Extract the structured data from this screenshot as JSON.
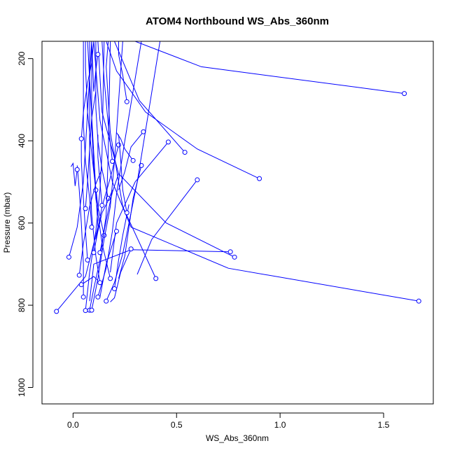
{
  "chart_data": {
    "type": "line",
    "title": "ATOM4 Northbound WS_Abs_360nm",
    "xlabel": "WS_Abs_360nm",
    "ylabel": "Pressure (mbar)",
    "xlim": [
      -0.15,
      1.74
    ],
    "ylim": [
      1040,
      158
    ],
    "x_ticks": [
      0.0,
      0.5,
      1.0,
      1.5
    ],
    "x_tick_labels": [
      "0.0",
      "0.5",
      "1.0",
      "1.5"
    ],
    "y_ticks": [
      200,
      400,
      600,
      800,
      1000
    ],
    "y_tick_labels": [
      "200",
      "400",
      "600",
      "800",
      "1000"
    ],
    "grid": false,
    "series_color": "#0000ff",
    "series": [
      {
        "values": [
          [
            -0.08,
            815
          ],
          [
            0.06,
            730
          ],
          [
            0.12,
            610
          ],
          [
            0.1,
            430
          ],
          [
            0.08,
            250
          ],
          [
            0.07,
            158
          ]
        ]
      },
      {
        "values": [
          [
            1.67,
            790
          ],
          [
            0.75,
            710
          ],
          [
            0.28,
            610
          ],
          [
            0.19,
            500
          ],
          [
            0.13,
            350
          ],
          [
            0.1,
            158
          ]
        ]
      },
      {
        "values": [
          [
            1.6,
            285
          ],
          [
            0.62,
            220
          ],
          [
            0.3,
            158
          ]
        ]
      },
      {
        "values": [
          [
            0.78,
            683
          ],
          [
            0.45,
            600
          ],
          [
            0.22,
            480
          ],
          [
            0.14,
            330
          ],
          [
            0.12,
            158
          ]
        ]
      },
      {
        "values": [
          [
            0.9,
            492
          ],
          [
            0.6,
            420
          ],
          [
            0.35,
            330
          ],
          [
            0.21,
            230
          ],
          [
            0.16,
            158
          ]
        ]
      },
      {
        "values": [
          [
            0.76,
            670
          ],
          [
            0.28,
            665
          ],
          [
            0.1,
            700
          ],
          [
            0.08,
            790
          ]
        ]
      },
      {
        "values": [
          [
            0.6,
            495
          ],
          [
            0.38,
            640
          ],
          [
            0.31,
            725
          ]
        ]
      },
      {
        "values": [
          [
            0.54,
            428
          ],
          [
            0.32,
            302
          ],
          [
            0.2,
            158
          ]
        ]
      },
      {
        "values": [
          [
            0.46,
            403
          ],
          [
            0.3,
            500
          ],
          [
            0.21,
            600
          ],
          [
            0.18,
            720
          ]
        ]
      },
      {
        "values": [
          [
            0.4,
            735
          ],
          [
            0.24,
            560
          ],
          [
            0.18,
            380
          ],
          [
            0.16,
            220
          ],
          [
            0.17,
            158
          ]
        ]
      },
      {
        "values": [
          [
            0.34,
            378
          ],
          [
            0.28,
            415
          ],
          [
            0.25,
            475
          ],
          [
            0.22,
            520
          ]
        ]
      },
      {
        "values": [
          [
            0.33,
            460
          ],
          [
            0.29,
            540
          ],
          [
            0.25,
            680
          ],
          [
            0.22,
            735
          ]
        ]
      },
      {
        "values": [
          [
            0.26,
            305
          ],
          [
            0.24,
            240
          ],
          [
            0.22,
            190
          ],
          [
            0.22,
            158
          ]
        ]
      },
      {
        "values": [
          [
            0.28,
            663
          ],
          [
            0.23,
            720
          ],
          [
            0.2,
            782
          ],
          [
            0.18,
            792
          ]
        ]
      },
      {
        "values": [
          [
            0.22,
            410
          ],
          [
            0.18,
            490
          ],
          [
            0.14,
            560
          ],
          [
            0.11,
            640
          ]
        ]
      },
      {
        "values": [
          [
            0.21,
            620
          ],
          [
            0.16,
            700
          ],
          [
            0.13,
            780
          ],
          [
            0.12,
            783
          ]
        ]
      },
      {
        "values": [
          [
            0.19,
            450
          ],
          [
            0.17,
            360
          ],
          [
            0.15,
            250
          ],
          [
            0.14,
            158
          ]
        ]
      },
      {
        "values": [
          [
            0.17,
            540
          ],
          [
            0.14,
            470
          ],
          [
            0.12,
            400
          ],
          [
            0.11,
            320
          ],
          [
            0.11,
            158
          ]
        ]
      },
      {
        "values": [
          [
            0.15,
            630
          ],
          [
            0.12,
            560
          ],
          [
            0.1,
            470
          ],
          [
            0.09,
            360
          ],
          [
            0.09,
            158
          ]
        ]
      },
      {
        "values": [
          [
            0.13,
            745
          ],
          [
            0.11,
            680
          ],
          [
            0.09,
            580
          ],
          [
            0.08,
            450
          ],
          [
            0.08,
            158
          ]
        ]
      },
      {
        "values": [
          [
            0.11,
            520
          ],
          [
            0.09,
            430
          ],
          [
            0.07,
            330
          ],
          [
            0.06,
            220
          ],
          [
            0.06,
            158
          ]
        ]
      },
      {
        "values": [
          [
            0.09,
            610
          ],
          [
            0.08,
            540
          ],
          [
            0.06,
            450
          ],
          [
            0.05,
            360
          ],
          [
            0.05,
            158
          ]
        ]
      },
      {
        "values": [
          [
            0.07,
            690
          ],
          [
            0.06,
            620
          ],
          [
            0.05,
            540
          ],
          [
            0.04,
            450
          ],
          [
            0.04,
            400
          ]
        ]
      },
      {
        "values": [
          [
            0.05,
            780
          ],
          [
            0.05,
            700
          ],
          [
            0.04,
            600
          ],
          [
            0.03,
            520
          ],
          [
            0.02,
            460
          ]
        ]
      },
      {
        "values": [
          [
            0.02,
            470
          ],
          [
            0.01,
            510
          ],
          [
            0.0,
            455
          ],
          [
            -0.01,
            463
          ]
        ]
      },
      {
        "values": [
          [
            -0.02,
            683
          ],
          [
            0.02,
            610
          ],
          [
            0.05,
            500
          ],
          [
            0.07,
            330
          ],
          [
            0.09,
            158
          ]
        ]
      },
      {
        "values": [
          [
            0.06,
            813
          ],
          [
            0.08,
            720
          ],
          [
            0.11,
            620
          ],
          [
            0.13,
            520
          ],
          [
            0.14,
            430
          ],
          [
            0.15,
            158
          ]
        ]
      },
      {
        "values": [
          [
            0.08,
            812
          ],
          [
            0.1,
            760
          ],
          [
            0.13,
            690
          ],
          [
            0.16,
            580
          ],
          [
            0.17,
            430
          ],
          [
            0.18,
            158
          ]
        ]
      },
      {
        "values": [
          [
            0.09,
            812
          ],
          [
            0.12,
            735
          ],
          [
            0.15,
            640
          ],
          [
            0.18,
            560
          ],
          [
            0.2,
            450
          ],
          [
            0.24,
            158
          ]
        ]
      },
      {
        "values": [
          [
            0.12,
            780
          ],
          [
            0.16,
            710
          ],
          [
            0.19,
            620
          ],
          [
            0.21,
            530
          ],
          [
            0.25,
            400
          ],
          [
            0.33,
            158
          ]
        ]
      },
      {
        "values": [
          [
            0.16,
            790
          ],
          [
            0.2,
            745
          ],
          [
            0.24,
            675
          ],
          [
            0.27,
            600
          ],
          [
            0.31,
            500
          ],
          [
            0.42,
            158
          ]
        ]
      },
      {
        "values": [
          [
            0.04,
            750
          ],
          [
            0.07,
            740
          ],
          [
            0.1,
            730
          ],
          [
            0.12,
            740
          ]
        ]
      },
      {
        "values": [
          [
            0.03,
            727
          ],
          [
            0.05,
            650
          ],
          [
            0.08,
            560
          ],
          [
            0.11,
            505
          ],
          [
            0.14,
            468
          ]
        ]
      },
      {
        "values": [
          [
            0.1,
            672
          ],
          [
            0.12,
            620
          ],
          [
            0.14,
            575
          ],
          [
            0.17,
            545
          ],
          [
            0.19,
            520
          ]
        ]
      },
      {
        "values": [
          [
            0.13,
            672
          ],
          [
            0.15,
            620
          ],
          [
            0.17,
            570
          ],
          [
            0.19,
            525
          ],
          [
            0.22,
            480
          ]
        ]
      },
      {
        "values": [
          [
            0.2,
            760
          ],
          [
            0.22,
            690
          ],
          [
            0.24,
            630
          ],
          [
            0.26,
            580
          ],
          [
            0.27,
            555
          ]
        ]
      },
      {
        "values": [
          [
            0.26,
            575
          ],
          [
            0.24,
            520
          ],
          [
            0.23,
            445
          ],
          [
            0.22,
            385
          ]
        ]
      },
      {
        "values": [
          [
            0.29,
            448
          ],
          [
            0.25,
            420
          ],
          [
            0.23,
            395
          ],
          [
            0.21,
            380
          ]
        ]
      },
      {
        "values": [
          [
            0.06,
            565
          ],
          [
            0.07,
            500
          ],
          [
            0.08,
            420
          ],
          [
            0.09,
            345
          ],
          [
            0.11,
            280
          ]
        ]
      },
      {
        "values": [
          [
            0.04,
            395
          ],
          [
            0.05,
            330
          ],
          [
            0.07,
            260
          ],
          [
            0.09,
            210
          ],
          [
            0.1,
            158
          ]
        ]
      },
      {
        "values": [
          [
            0.12,
            190
          ],
          [
            0.11,
            230
          ],
          [
            0.1,
            280
          ],
          [
            0.09,
            158
          ]
        ]
      },
      {
        "values": [
          [
            0.18,
            735
          ],
          [
            0.14,
            650
          ],
          [
            0.11,
            540
          ],
          [
            0.1,
            430
          ]
        ]
      },
      {
        "values": [
          [
            0.14,
            557
          ],
          [
            0.13,
            500
          ],
          [
            0.12,
            440
          ],
          [
            0.12,
            385
          ]
        ]
      }
    ]
  }
}
